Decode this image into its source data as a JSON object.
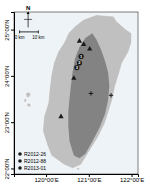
{
  "chart_data": {
    "type": "map",
    "xlim": [
      119.25,
      122.15
    ],
    "ylim": [
      21.88,
      25.38
    ],
    "xticks": [
      {
        "value": 120.0,
        "label": "120°00'E"
      },
      {
        "value": 121.0,
        "label": "121°00'E"
      },
      {
        "value": 122.0,
        "label": "122°00'E"
      }
    ],
    "yticks": [
      {
        "value": 22.0,
        "label": "22°00'N"
      },
      {
        "value": 23.0,
        "label": "23°00'N"
      },
      {
        "value": 24.0,
        "label": "24°00'N"
      },
      {
        "value": 25.0,
        "label": "25°00'N"
      }
    ],
    "grid": false,
    "areas": [
      {
        "color": "#c0c0c0",
        "x": [
          121.58,
          121.65,
          121.85,
          122.0,
          122.0,
          121.93,
          121.78,
          121.72,
          121.62,
          121.55,
          121.45,
          121.38,
          121.22,
          121.02,
          120.82,
          120.62,
          120.42,
          120.12,
          120.02,
          119.92,
          119.95,
          120.05,
          120.08,
          120.12,
          120.18,
          120.28,
          120.42,
          120.52,
          120.68,
          120.88,
          121.18,
          121.42,
          121.58
        ],
        "y": [
          25.29,
          25.18,
          25.02,
          24.92,
          24.72,
          24.52,
          24.28,
          24.08,
          23.78,
          23.48,
          23.18,
          22.98,
          22.68,
          22.38,
          22.08,
          22.0,
          22.08,
          22.28,
          22.52,
          22.82,
          23.12,
          23.42,
          23.72,
          24.02,
          24.28,
          24.52,
          24.72,
          24.92,
          25.08,
          25.22,
          25.32,
          25.3,
          25.29
        ]
      },
      {
        "color": "#787878",
        "x": [
          121.08,
          121.18,
          121.28,
          121.38,
          121.45,
          121.48,
          121.45,
          121.38,
          121.25,
          121.08,
          120.92,
          120.78,
          120.65,
          120.55,
          120.52,
          120.52,
          120.55,
          120.58,
          120.62,
          120.68,
          120.78,
          120.92,
          121.08
        ],
        "y": [
          24.92,
          24.78,
          24.58,
          24.32,
          24.08,
          23.78,
          23.48,
          23.18,
          22.88,
          22.58,
          22.32,
          22.22,
          22.28,
          22.58,
          22.92,
          23.22,
          23.52,
          23.78,
          24.08,
          24.38,
          24.62,
          24.82,
          24.92
        ]
      },
      {
        "color": "#c0c0c0",
        "x": [
          119.52,
          119.58,
          119.65,
          119.62,
          119.55,
          119.52
        ],
        "y": [
          23.62,
          23.65,
          23.62,
          23.55,
          23.52,
          23.62
        ]
      },
      {
        "color": "#c0c0c0",
        "x": [
          119.48,
          119.52,
          119.55,
          119.52,
          119.48,
          119.48
        ],
        "y": [
          23.48,
          23.52,
          23.48,
          23.42,
          23.45,
          23.48
        ]
      },
      {
        "color": "#c0c0c0",
        "x": [
          119.55,
          119.6,
          119.65,
          119.62,
          119.55,
          119.55
        ],
        "y": [
          23.38,
          23.42,
          23.38,
          23.32,
          23.35,
          23.38
        ]
      },
      {
        "color": "#c0c0c0",
        "x": [
          120.72,
          120.78,
          120.78,
          120.72,
          120.72
        ],
        "y": [
          22.02,
          22.02,
          21.97,
          21.97,
          22.02
        ]
      }
    ],
    "series": [
      {
        "marker": "triangle",
        "color": "#1a1a1a",
        "x": [
          120.78,
          120.88,
          121.02,
          120.65,
          120.35
        ],
        "y": [
          24.75,
          24.68,
          24.58,
          23.95,
          23.12
        ]
      },
      {
        "marker": "cross",
        "color": "#1a1a1a",
        "x": [
          121.05,
          121.52
        ],
        "y": [
          23.62,
          23.58
        ]
      },
      {
        "marker": "circle",
        "color": "#1a1a1a",
        "x": [
          120.82,
          120.78,
          120.72
        ],
        "y": [
          24.42,
          24.28,
          24.18
        ],
        "labels": [
          "1",
          "2",
          "3"
        ]
      }
    ],
    "legend": "lower left",
    "legend_items": [
      {
        "label": "R2012-26",
        "marker": "circle",
        "color": "#1a1a1a"
      },
      {
        "label": "R2012-88",
        "marker": "circle",
        "color": "#1a1a1a"
      },
      {
        "label": "R2013-01",
        "marker": "circle",
        "color": "#1a1a1a"
      }
    ],
    "north_arrow": {
      "label": "N",
      "x": 119.58,
      "y": 25.22
    },
    "scale_bar": {
      "x": [
        119.38,
        119.82
      ],
      "y": 24.95,
      "labels": [
        "0 km",
        "10 km"
      ]
    }
  }
}
